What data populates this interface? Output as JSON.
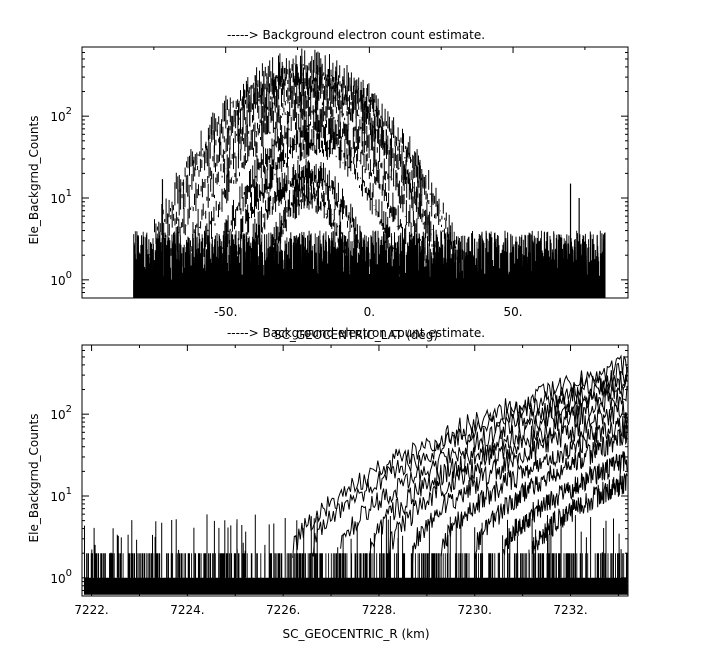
{
  "chart_data": [
    {
      "type": "line",
      "title": "-----> Background electron count estimate.",
      "xlabel": "SC_GEOCENTRIC_LAT (deg)",
      "ylabel": "Ele_Backgrnd_Counts",
      "xlim": [
        -100,
        90
      ],
      "ylim": [
        0.6,
        700
      ],
      "yscale": "log",
      "xticks": [
        -50,
        0,
        50
      ],
      "xtick_labels": [
        "-50.",
        "0.",
        "50."
      ],
      "yticks": [
        1,
        10,
        100
      ],
      "ytick_labels": [
        "10^0",
        "10^1",
        "10^2"
      ],
      "grid": false,
      "data_extent": {
        "x": [
          -82,
          82
        ]
      },
      "baseline": {
        "low": 1,
        "high": 4
      },
      "bumps": [
        {
          "center_lat": -23,
          "peak": 450,
          "width_lat": 30
        },
        {
          "center_lat": -22,
          "peak": 380,
          "width_lat": 29
        },
        {
          "center_lat": -22,
          "peak": 300,
          "width_lat": 27
        },
        {
          "center_lat": -20,
          "peak": 230,
          "width_lat": 26
        },
        {
          "center_lat": -20,
          "peak": 160,
          "width_lat": 24
        },
        {
          "center_lat": -19,
          "peak": 90,
          "width_lat": 22
        },
        {
          "center_lat": -19,
          "peak": 55,
          "width_lat": 20
        },
        {
          "center_lat": -22,
          "peak": 22,
          "width_lat": 17
        },
        {
          "center_lat": -21,
          "peak": 12,
          "width_lat": 13
        }
      ],
      "spikes": [
        {
          "x": -72,
          "value": 17
        },
        {
          "x": 70,
          "value": 15
        },
        {
          "x": 73,
          "value": 10
        }
      ]
    },
    {
      "type": "line",
      "title": "-----> Background electron count estimate.",
      "xlabel": "SC_GEOCENTRIC_R (km)",
      "ylabel": "Ele_Backgrnd_Counts",
      "xlim": [
        7221.8,
        7233.2
      ],
      "ylim": [
        0.6,
        700
      ],
      "yscale": "log",
      "xticks": [
        7222,
        7224,
        7226,
        7228,
        7230,
        7232
      ],
      "xtick_labels": [
        "7222.",
        "7224.",
        "7226.",
        "7228.",
        "7230.",
        "7232."
      ],
      "yticks": [
        1,
        10,
        100
      ],
      "ytick_labels": [
        "10^0",
        "10^1",
        "10^2"
      ],
      "grid": false,
      "baseline": {
        "low": 1,
        "high": 2
      },
      "series": [
        {
          "start_r": 7226.2,
          "end_value": 400
        },
        {
          "start_r": 7226.6,
          "end_value": 330
        },
        {
          "start_r": 7227.2,
          "end_value": 270
        },
        {
          "start_r": 7227.8,
          "end_value": 220
        },
        {
          "start_r": 7228.2,
          "end_value": 170
        },
        {
          "start_r": 7228.7,
          "end_value": 120
        },
        {
          "start_r": 7229.3,
          "end_value": 80
        },
        {
          "start_r": 7230.0,
          "end_value": 55
        },
        {
          "start_r": 7230.6,
          "end_value": 28
        },
        {
          "start_r": 7231.2,
          "end_value": 15
        }
      ]
    }
  ]
}
